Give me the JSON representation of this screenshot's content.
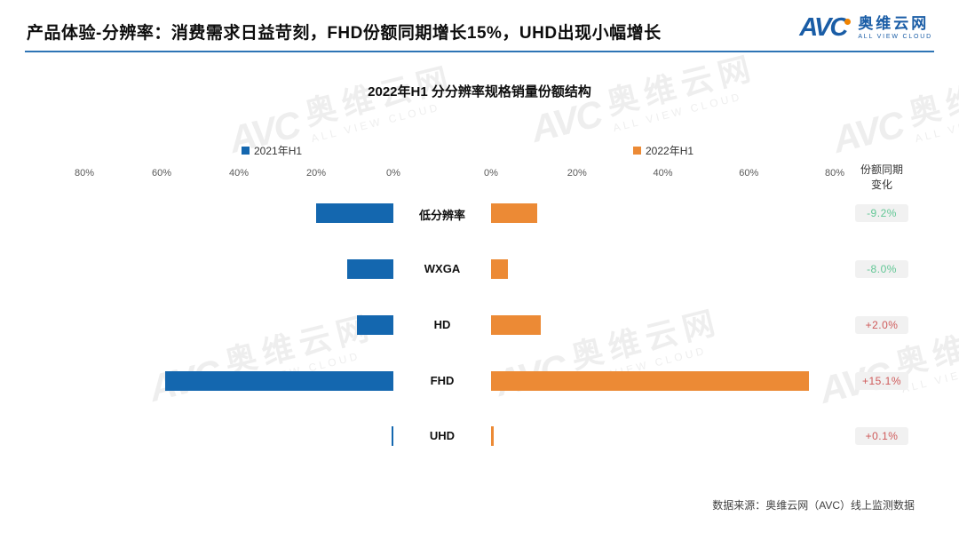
{
  "header": {
    "title": "产品体验-分辨率：消费需求日益苛刻，FHD份额同期增长15%，UHD出现小幅增长",
    "logo": {
      "text": "AVC",
      "name_cn": "奥维云网",
      "name_en": "ALL VIEW CLOUD"
    }
  },
  "chart_data": {
    "type": "bar",
    "variant": "tornado-horizontal",
    "title": "2022年H1  分分辨率规格销量份额结构",
    "categories": [
      "低分辨率",
      "WXGA",
      "HD",
      "FHD",
      "UHD"
    ],
    "series": [
      {
        "name": "2021年H1",
        "color": "#1467af",
        "values": [
          20.0,
          12.0,
          9.5,
          59.0,
          0.5
        ]
      },
      {
        "name": "2022年H1",
        "color": "#ec8a35",
        "values": [
          10.8,
          4.0,
          11.5,
          74.1,
          0.6
        ]
      }
    ],
    "change_column": {
      "header": "份额同期变化",
      "values": [
        "-9.2%",
        "-8.0%",
        "+2.0%",
        "+15.1%",
        "+0.1%"
      ],
      "directions": [
        "down",
        "down",
        "up",
        "up",
        "up"
      ]
    },
    "axis": {
      "ticks_left": [
        "80%",
        "60%",
        "40%",
        "20%",
        "0%"
      ],
      "ticks_right": [
        "0%",
        "20%",
        "40%",
        "60%",
        "80%"
      ],
      "max": 80,
      "grid": false,
      "legend_position": "top"
    }
  },
  "colors": {
    "bar_2021": "#1467af",
    "bar_2022": "#ec8a35",
    "change_up": "#cf5a5a",
    "change_down": "#62c795",
    "badge_bg": "#f1f1f1",
    "header_rule": "#2e74b5",
    "logo_blue": "#1a5da6",
    "logo_orange": "#f08300"
  },
  "footer": {
    "source": "数据来源：奥维云网（AVC）线上监测数据"
  },
  "watermark": {
    "logo": "AVC",
    "cn": "奥维云网",
    "en": "ALL VIEW CLOUD"
  }
}
